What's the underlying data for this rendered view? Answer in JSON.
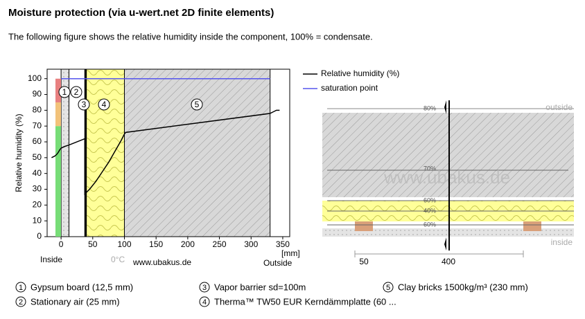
{
  "chart_data": {
    "type": "line",
    "title": "Moisture protection (via u-wert.net 2D finite elements)",
    "subtitle": "The following figure shows the relative humidity inside the component, 100% = condensate.",
    "ylabel": "Relative humidity (%)",
    "xunit": "[mm]",
    "inside_label": "Inside",
    "outside_label": "Outside",
    "zero_label": "0°C",
    "credit": "www.ubakus.de",
    "xlim": [
      -22,
      361
    ],
    "ylim": [
      0,
      106
    ],
    "xticks": [
      0,
      50,
      100,
      150,
      200,
      250,
      300,
      350
    ],
    "yticks": [
      0,
      10,
      20,
      30,
      40,
      50,
      60,
      70,
      80,
      90,
      100
    ],
    "humidity_bands": [
      {
        "ylim": [
          0,
          70
        ],
        "color": "#77dd77"
      },
      {
        "ylim": [
          70,
          85
        ],
        "color": "#f2c27a"
      },
      {
        "ylim": [
          85,
          100
        ],
        "color": "#e88080"
      }
    ],
    "series": [
      {
        "name": "Relative humidity (%)",
        "color": "#000000",
        "x": [
          -15,
          -10,
          -7,
          -5,
          -2,
          0,
          5,
          12.5,
          37.5,
          37.5,
          45,
          55,
          65,
          75,
          85,
          95,
          100,
          102,
          330,
          335,
          340,
          345
        ],
        "values": [
          50,
          51,
          52,
          53,
          55,
          56,
          57,
          58,
          62,
          27,
          30,
          35,
          41,
          47,
          54,
          61,
          65,
          66,
          78,
          79,
          80,
          80
        ]
      },
      {
        "name": "saturation point",
        "color": "#5555ee",
        "x": [
          0,
          330
        ],
        "values": [
          100,
          100
        ]
      }
    ],
    "layers": [
      {
        "number": "1",
        "name": "Gypsum board (12,5 mm)",
        "x": [
          0,
          12.5
        ]
      },
      {
        "number": "2",
        "name": "Stationary air (25 mm)",
        "x": [
          12.5,
          37.5
        ]
      },
      {
        "number": "3",
        "name": "Vapor barrier sd=100m",
        "x": [
          37.5,
          40
        ]
      },
      {
        "number": "4",
        "name": "Therma™ TW50 EUR Kerndämmplatte (60 ...",
        "x": [
          40,
          100
        ]
      },
      {
        "number": "5",
        "name": "Clay bricks 1500kg/m³ (230 mm)",
        "x": [
          100,
          330
        ]
      }
    ]
  },
  "section": {
    "levels": [
      "80%",
      "70%",
      "60%",
      "40%",
      "60%"
    ],
    "outside": "outside",
    "inside": "inside",
    "watermark": "www.ubakus.de",
    "scale": [
      "50",
      "400"
    ]
  }
}
